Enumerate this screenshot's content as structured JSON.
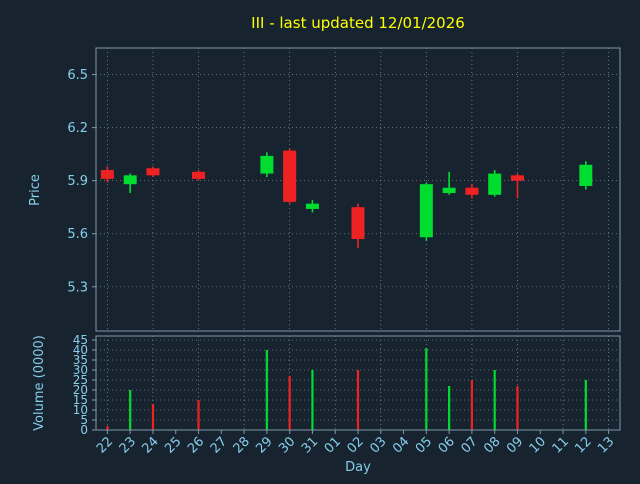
{
  "style": {
    "background": "#172430",
    "spine_color": "#7e98ac",
    "grid_color": "#95a7b6",
    "tick_color": "#87ceeb",
    "title_color": "#ffff00",
    "up_color": "#00dd2e",
    "down_color": "#ee2222"
  },
  "chart_data": {
    "type": "candlestick",
    "title": "III - last updated 12/01/2026",
    "xlabel": "Day",
    "ylabel": "Price",
    "ylabel2": "Volume (0000)",
    "x_categories": [
      "22",
      "23",
      "24",
      "25",
      "26",
      "27",
      "28",
      "29",
      "30",
      "31",
      "01",
      "02",
      "03",
      "04",
      "05",
      "06",
      "07",
      "08",
      "09",
      "10",
      "11",
      "12",
      "13"
    ],
    "price_ticks": [
      5.3,
      5.6,
      5.9,
      6.2,
      6.5
    ],
    "price_ylim": [
      5.05,
      6.65
    ],
    "volume_ticks": [
      0,
      5,
      10,
      15,
      20,
      25,
      30,
      35,
      40,
      45
    ],
    "volume_ylim": [
      0,
      47
    ],
    "grid": "dotted; horizontal gridlines at price/volume ticks, vertical gridlines every 2nd day",
    "legend": "none",
    "series": [
      {
        "day": "22",
        "open": 5.96,
        "high": 5.98,
        "low": 5.89,
        "close": 5.91,
        "volume": 2
      },
      {
        "day": "23",
        "open": 5.88,
        "high": 5.94,
        "low": 5.83,
        "close": 5.93,
        "volume": 20
      },
      {
        "day": "24",
        "open": 5.97,
        "high": 5.98,
        "low": 5.92,
        "close": 5.93,
        "volume": 13
      },
      {
        "day": "26",
        "open": 5.95,
        "high": 5.96,
        "low": 5.9,
        "close": 5.91,
        "volume": 15
      },
      {
        "day": "29",
        "open": 5.94,
        "high": 6.06,
        "low": 5.92,
        "close": 6.04,
        "volume": 40
      },
      {
        "day": "30",
        "open": 6.07,
        "high": 6.08,
        "low": 5.77,
        "close": 5.78,
        "volume": 27
      },
      {
        "day": "31",
        "open": 5.74,
        "high": 5.79,
        "low": 5.72,
        "close": 5.77,
        "volume": 30
      },
      {
        "day": "02",
        "open": 5.75,
        "high": 5.77,
        "low": 5.52,
        "close": 5.57,
        "volume": 30
      },
      {
        "day": "05",
        "open": 5.58,
        "high": 5.89,
        "low": 5.56,
        "close": 5.88,
        "volume": 41
      },
      {
        "day": "06",
        "open": 5.83,
        "high": 5.95,
        "low": 5.82,
        "close": 5.86,
        "volume": 22
      },
      {
        "day": "07",
        "open": 5.86,
        "high": 5.88,
        "low": 5.8,
        "close": 5.82,
        "volume": 25
      },
      {
        "day": "08",
        "open": 5.82,
        "high": 5.96,
        "low": 5.81,
        "close": 5.94,
        "volume": 30
      },
      {
        "day": "09",
        "open": 5.93,
        "high": 5.94,
        "low": 5.8,
        "close": 5.9,
        "volume": 22
      },
      {
        "day": "12",
        "open": 5.87,
        "high": 6.01,
        "low": 5.85,
        "close": 5.99,
        "volume": 25
      }
    ]
  }
}
